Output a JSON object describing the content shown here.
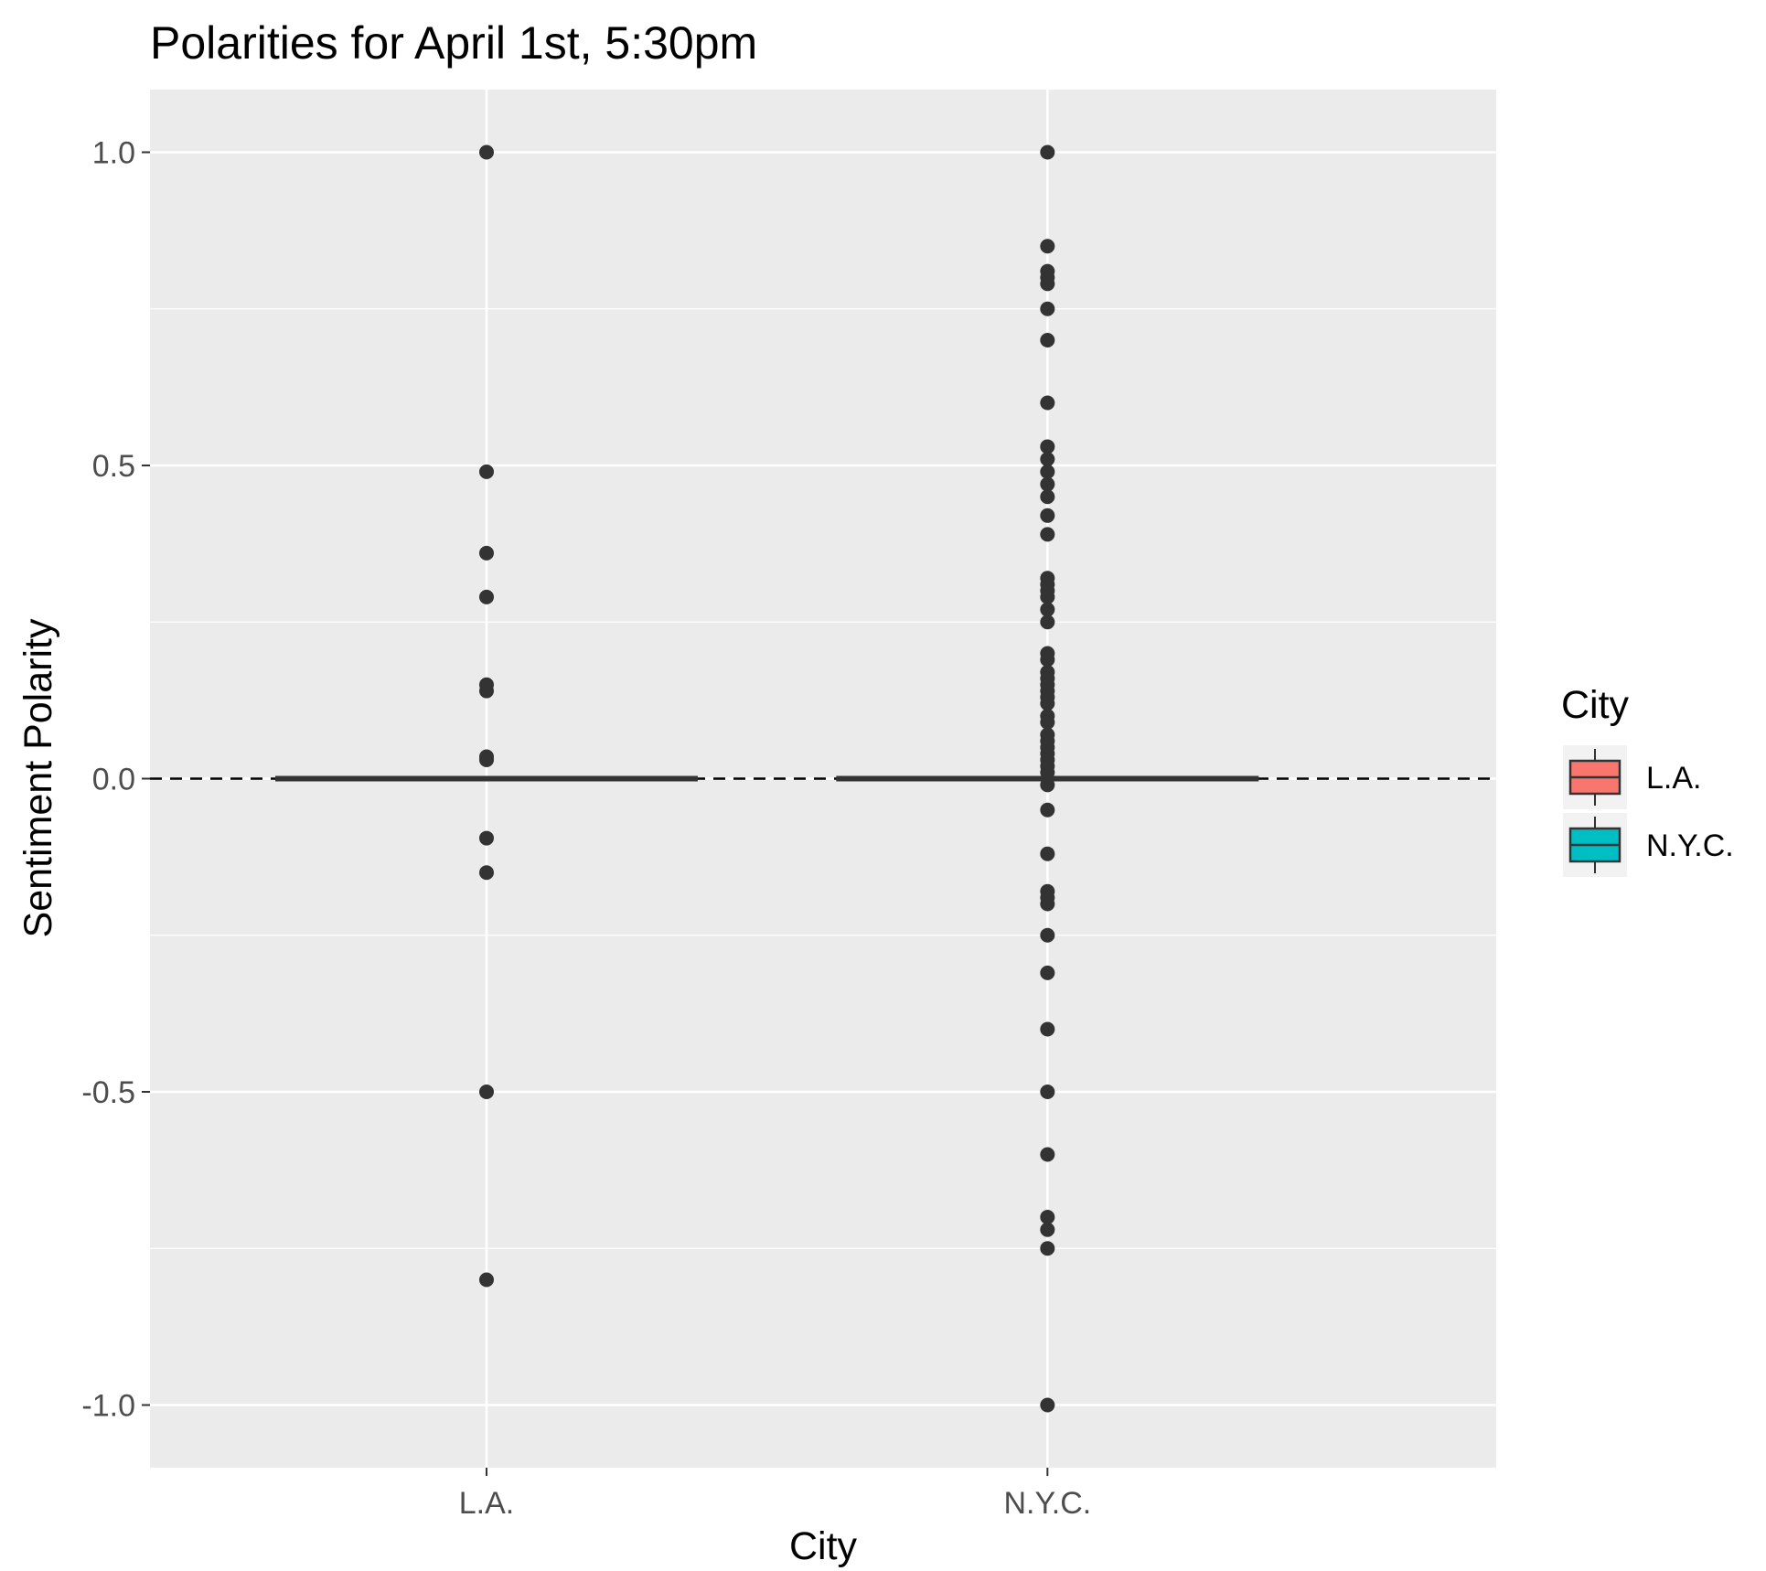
{
  "chart_data": {
    "type": "boxplot",
    "title": "Polarities for April 1st, 5:30pm",
    "xlabel": "City",
    "ylabel": "Sentiment Polarity",
    "categories": [
      "L.A.",
      "N.Y.C."
    ],
    "ylim": [
      -1.1,
      1.1
    ],
    "yticks": [
      1.0,
      0.5,
      0.0,
      -0.5,
      -1.0
    ],
    "ytick_labels": [
      "1.0",
      "0.5",
      "0.0",
      "-0.5",
      "-1.0"
    ],
    "grid": true,
    "legend": {
      "title": "City",
      "position": "right",
      "entries": [
        {
          "label": "L.A.",
          "color": "#F8766D"
        },
        {
          "label": "N.Y.C.",
          "color": "#00BFC4"
        }
      ]
    },
    "reference_line": {
      "y": 0,
      "style": "dashed"
    },
    "boxes": [
      {
        "category": "L.A.",
        "median": 0,
        "q1": 0,
        "q3": 0,
        "color": "#F8766D"
      },
      {
        "category": "N.Y.C.",
        "median": 0,
        "q1": 0,
        "q3": 0,
        "color": "#00BFC4"
      }
    ],
    "outliers": [
      {
        "category": "L.A.",
        "values": [
          1.0,
          0.49,
          0.36,
          0.29,
          0.15,
          0.14,
          0.035,
          0.03,
          -0.095,
          -0.15,
          -0.5,
          -0.8
        ]
      },
      {
        "category": "N.Y.C.",
        "values": [
          1.0,
          0.85,
          0.81,
          0.8,
          0.79,
          0.75,
          0.7,
          0.6,
          0.53,
          0.51,
          0.49,
          0.47,
          0.45,
          0.42,
          0.39,
          0.32,
          0.31,
          0.3,
          0.29,
          0.27,
          0.25,
          0.2,
          0.19,
          0.17,
          0.16,
          0.15,
          0.14,
          0.13,
          0.12,
          0.1,
          0.09,
          0.07,
          0.06,
          0.05,
          0.04,
          0.03,
          0.02,
          0.01,
          -0.01,
          -0.05,
          -0.12,
          -0.18,
          -0.19,
          -0.2,
          -0.25,
          -0.31,
          -0.4,
          -0.5,
          -0.6,
          -0.7,
          -0.72,
          -0.75,
          -1.0
        ]
      }
    ]
  }
}
